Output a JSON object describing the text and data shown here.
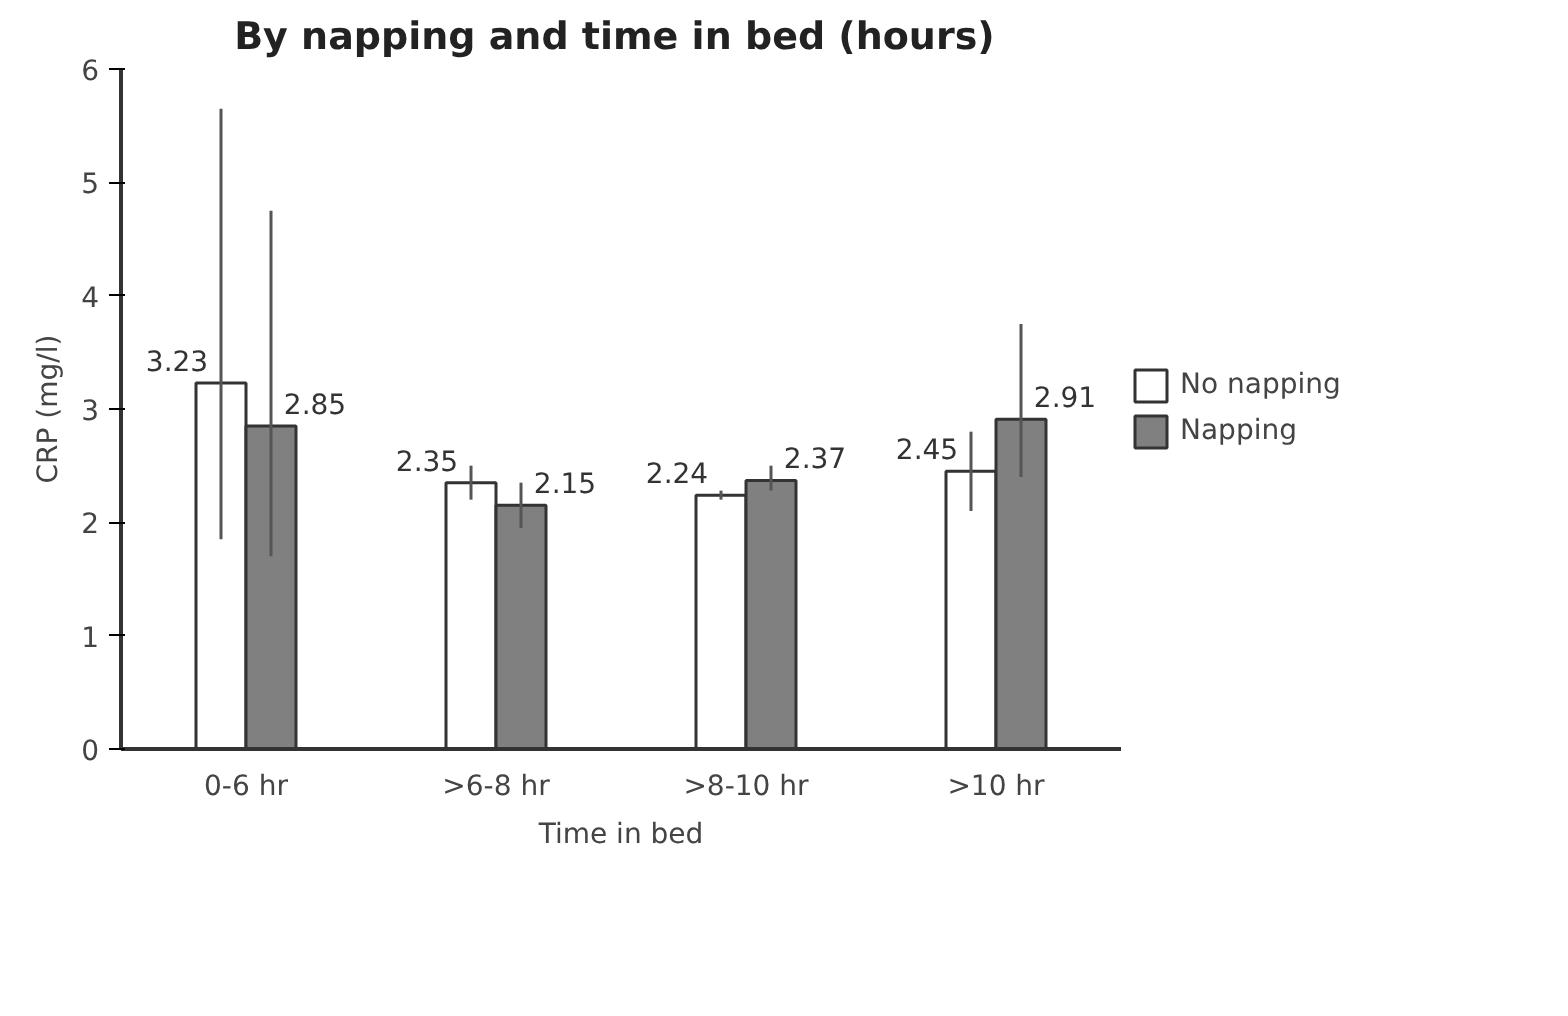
{
  "chart_data": {
    "type": "bar",
    "title": "By  napping and time in bed (hours)",
    "xlabel": "Time in bed",
    "ylabel": "CRP (mg/l)",
    "categories": [
      "0-6 hr",
      ">6-8 hr",
      ">8-10 hr",
      ">10 hr"
    ],
    "series": [
      {
        "name": "No napping",
        "color": "#ffffff",
        "values": [
          3.23,
          2.35,
          2.24,
          2.45
        ],
        "errors": [
          [
            1.85,
            5.65
          ],
          [
            2.2,
            2.5
          ],
          [
            2.2,
            2.28
          ],
          [
            2.1,
            2.8
          ]
        ]
      },
      {
        "name": "Napping",
        "color": "#808080",
        "values": [
          2.85,
          2.15,
          2.37,
          2.91
        ],
        "errors": [
          [
            1.7,
            4.75
          ],
          [
            1.95,
            2.35
          ],
          [
            2.28,
            2.5
          ],
          [
            2.4,
            3.75
          ]
        ]
      }
    ],
    "ylim": [
      0,
      6
    ],
    "yticks": [
      0,
      1,
      2,
      3,
      4,
      5,
      6
    ],
    "grid": false,
    "legend": "right",
    "data_labels": true
  }
}
